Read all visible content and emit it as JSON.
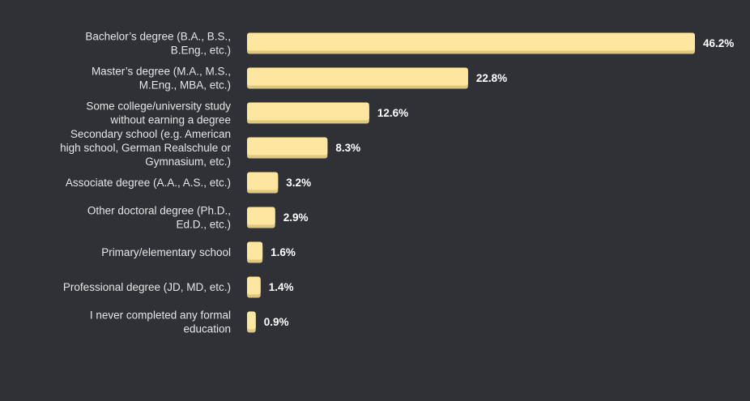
{
  "colors": {
    "background": "#2f3136",
    "bar": "#fde6a0",
    "bar_shadow": "#e0c878",
    "category_text": "#e6e6e6",
    "value_text": "#ffffff"
  },
  "chart_data": {
    "type": "bar",
    "orientation": "horizontal",
    "title": "",
    "xlabel": "",
    "ylabel": "",
    "grid": false,
    "xlim": [
      0,
      46.2
    ],
    "categories": [
      [
        "Bachelor’s degree (B.A., B.S.,",
        "B.Eng., etc.)"
      ],
      [
        "Master’s degree (M.A., M.S.,",
        "M.Eng., MBA, etc.)"
      ],
      [
        "Some college/university study",
        "without earning a degree"
      ],
      [
        "Secondary school (e.g. American",
        "high school, German Realschule or",
        "Gymnasium, etc.)"
      ],
      [
        "Associate degree (A.A., A.S., etc.)"
      ],
      [
        "Other doctoral degree (Ph.D.,",
        "Ed.D., etc.)"
      ],
      [
        "Primary/elementary school"
      ],
      [
        "Professional degree (JD, MD, etc.)"
      ],
      [
        "I never completed any formal",
        "education"
      ]
    ],
    "values": [
      46.2,
      22.8,
      12.6,
      8.3,
      3.2,
      2.9,
      1.6,
      1.4,
      0.9
    ],
    "value_labels": [
      "46.2%",
      "22.8%",
      "12.6%",
      "8.3%",
      "3.2%",
      "2.9%",
      "1.6%",
      "1.4%",
      "0.9%"
    ]
  }
}
